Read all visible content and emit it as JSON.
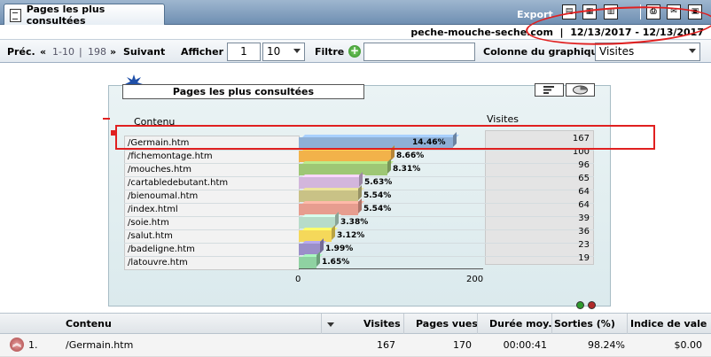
{
  "header": {
    "tab_title": "Pages les plus consultées",
    "export_label": "Export",
    "site_and_dates": "peche-mouche-seche.com  |  12/13/2017 - 12/13/2017"
  },
  "nav": {
    "prev": "Préc.",
    "range": "1-10",
    "sep": "|",
    "total": "198",
    "next": "Suivant",
    "afficher_label": "Afficher",
    "page_value": "1",
    "per_page_value": "10",
    "filtre_label": "Filtre",
    "filtre_value": "",
    "colonne_label": "Colonne du graphique",
    "colonne_value": "Visites"
  },
  "chart_data": {
    "type": "bar",
    "title": "Pages les plus consultées",
    "xlabel": "Contenu",
    "ylabel": "Visites",
    "categories": [
      "/Germain.htm",
      "/fichemontage.htm",
      "/mouches.htm",
      "/cartabledebutant.htm",
      "/bienoumal.htm",
      "/index.html",
      "/soie.htm",
      "/salut.htm",
      "/badeligne.htm",
      "/latouvre.htm"
    ],
    "values": [
      167,
      100,
      96,
      65,
      64,
      64,
      39,
      36,
      23,
      19
    ],
    "percents": [
      "14.46%",
      "8.66%",
      "8.31%",
      "5.63%",
      "5.54%",
      "5.54%",
      "3.38%",
      "3.12%",
      "1.99%",
      "1.65%"
    ],
    "colors": [
      "#8eb0d6",
      "#f2b24a",
      "#9ec775",
      "#d3b6dc",
      "#c9c286",
      "#e79d8f",
      "#b7dcc9",
      "#f5d85a",
      "#9b8fc9",
      "#8fd2a2"
    ],
    "ticks": [
      "0",
      "200"
    ],
    "xlim": [
      0,
      200
    ]
  },
  "table": {
    "headers": [
      "Contenu",
      "Visites",
      "Pages vues",
      "Durée moy.",
      "Sorties (%)",
      "Indice de vale"
    ],
    "row": {
      "index": "1.",
      "contenu": "/Germain.htm",
      "visites": "167",
      "pages_vues": "170",
      "duree": "00:00:41",
      "sorties": "98.24%",
      "indice": "$0.00"
    }
  }
}
